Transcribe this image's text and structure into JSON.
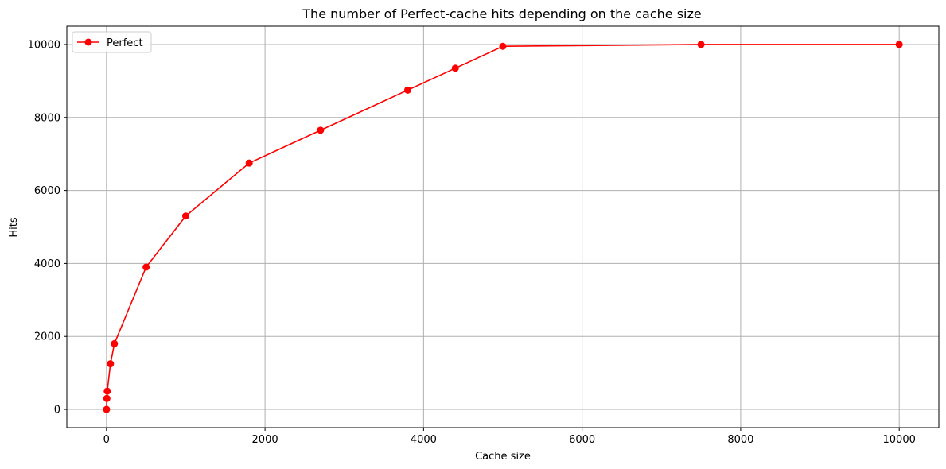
{
  "chart_data": {
    "type": "line",
    "title": "The number of Perfect-cache hits depending on the cache size",
    "xlabel": "Cache size",
    "ylabel": "Hits",
    "xlim": [
      -500,
      10500
    ],
    "ylim": [
      -500,
      10500
    ],
    "xticks": [
      0,
      2000,
      4000,
      6000,
      8000,
      10000
    ],
    "yticks": [
      0,
      2000,
      4000,
      6000,
      8000,
      10000
    ],
    "grid": true,
    "legend_position": "top-left",
    "series": [
      {
        "name": "Perfect",
        "color": "#ff0000",
        "marker": "circle",
        "x": [
          1,
          5,
          10,
          50,
          100,
          500,
          1000,
          1800,
          2700,
          3800,
          4400,
          5000,
          7500,
          10000
        ],
        "y": [
          0,
          300,
          500,
          1250,
          1800,
          3900,
          5300,
          6750,
          7650,
          8750,
          9350,
          9950,
          10000,
          10000
        ]
      }
    ]
  }
}
